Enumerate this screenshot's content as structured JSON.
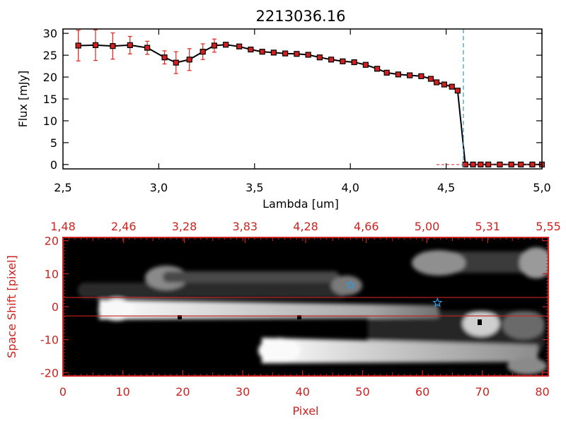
{
  "chart_data": [
    {
      "type": "line",
      "title": "2213036.16",
      "xlabel": "Lambda [um]",
      "ylabel": "Flux [mJy]",
      "xlim": [
        2.5,
        5.0
      ],
      "ylim": [
        -1,
        31
      ],
      "xticks": [
        "2.5",
        "3.0",
        "3.5",
        "4.0",
        "4.5",
        "5.0"
      ],
      "yticks": [
        "0",
        "5",
        "10",
        "15",
        "20",
        "25",
        "30"
      ],
      "vline_x": 4.59,
      "colors": {
        "line": "#000000",
        "marker": "#d02020",
        "error": "#dd2222",
        "vline": "#3399cc"
      },
      "series": [
        {
          "x": [
            2.58,
            2.67,
            2.76,
            2.85,
            2.94,
            3.03,
            3.09,
            3.16,
            3.23,
            3.29,
            3.35,
            3.42,
            3.48,
            3.54,
            3.6,
            3.66,
            3.72,
            3.78,
            3.84,
            3.9,
            3.96,
            4.02,
            4.08,
            4.14,
            4.19,
            4.25,
            4.31,
            4.37,
            4.42,
            4.45,
            4.49,
            4.53,
            4.56,
            4.6,
            4.64,
            4.68,
            4.72,
            4.78,
            4.84,
            4.89,
            4.95,
            5.0
          ],
          "y": [
            27.2,
            27.3,
            27.1,
            27.3,
            26.7,
            24.5,
            23.3,
            24.0,
            25.8,
            27.2,
            27.4,
            27.0,
            26.3,
            25.8,
            25.6,
            25.4,
            25.3,
            25.1,
            24.5,
            24.0,
            23.6,
            23.4,
            22.8,
            21.9,
            21.0,
            20.6,
            20.4,
            20.2,
            19.6,
            18.8,
            18.3,
            17.8,
            16.9,
            0,
            0,
            0,
            0,
            0,
            0,
            0,
            0,
            0
          ],
          "yerr": [
            3.5,
            3.5,
            3.0,
            2.0,
            1.5,
            1.5,
            2.5,
            2.5,
            1.8,
            1.5,
            0.5,
            0.5,
            0.3,
            0.3,
            0.3,
            0.3,
            0.3,
            0.3,
            0.3,
            0.3,
            0.3,
            0.3,
            0.3,
            0.3,
            0.3,
            0.3,
            0.3,
            0.3,
            0.3,
            0.3,
            0.3,
            0.3,
            0.3,
            0,
            0,
            0,
            0,
            0,
            0,
            0,
            0,
            0
          ]
        }
      ]
    },
    {
      "type": "heatmap",
      "xlabel": "Pixel",
      "ylabel": "Space Shift [pixel]",
      "xlim": [
        0,
        81
      ],
      "ylim": [
        -21,
        21
      ],
      "xticks": [
        "0",
        "10",
        "20",
        "30",
        "40",
        "50",
        "60",
        "70",
        "80"
      ],
      "yticks": [
        "-20",
        "-10",
        "0",
        "10",
        "20"
      ],
      "top_axis_ticks": [
        "1.48",
        "2.46",
        "3.28",
        "3.83",
        "4.28",
        "4.66",
        "5.00",
        "5.31",
        "5.55"
      ],
      "aperture_lines_y": [
        2.8,
        -2.8
      ],
      "stars": [
        {
          "x": 48.0,
          "y": 6.5
        },
        {
          "x": 62.5,
          "y": 1.2
        }
      ],
      "colors": {
        "axis": "#cc2222",
        "aperture": "#cc2222",
        "star": "#3399dd"
      }
    }
  ]
}
